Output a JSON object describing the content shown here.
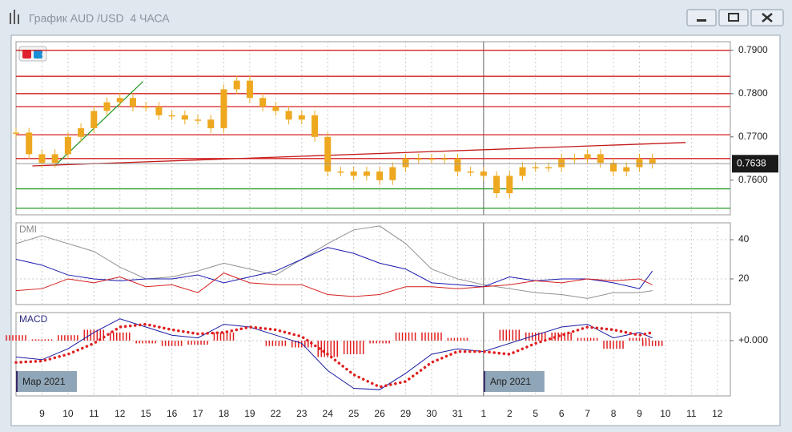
{
  "window": {
    "title": "График AUD /USD  4 ЧАСА"
  },
  "x_axis": {
    "xlim": [
      -1,
      26.5
    ],
    "xticks": [
      {
        "value": 0,
        "label": "9"
      },
      {
        "value": 1,
        "label": "10"
      },
      {
        "value": 2,
        "label": "11"
      },
      {
        "value": 3,
        "label": "12"
      },
      {
        "value": 4,
        "label": "15"
      },
      {
        "value": 5,
        "label": "16"
      },
      {
        "value": 6,
        "label": "17"
      },
      {
        "value": 7,
        "label": "18"
      },
      {
        "value": 8,
        "label": "19"
      },
      {
        "value": 9,
        "label": "22"
      },
      {
        "value": 10,
        "label": "23"
      },
      {
        "value": 11,
        "label": "24"
      },
      {
        "value": 12,
        "label": "25"
      },
      {
        "value": 13,
        "label": "26"
      },
      {
        "value": 14,
        "label": "29"
      },
      {
        "value": 15,
        "label": "30"
      },
      {
        "value": 16,
        "label": "31"
      },
      {
        "value": 17,
        "label": "1"
      },
      {
        "value": 18,
        "label": "2"
      },
      {
        "value": 19,
        "label": "5"
      },
      {
        "value": 20,
        "label": "6"
      },
      {
        "value": 21,
        "label": "7"
      },
      {
        "value": 22,
        "label": "8"
      },
      {
        "value": 23,
        "label": "9"
      },
      {
        "value": 24,
        "label": "10"
      },
      {
        "value": 25,
        "label": "11"
      },
      {
        "value": 26,
        "label": "12"
      }
    ],
    "periods": [
      {
        "value": -1,
        "label": "Мар 2021"
      },
      {
        "value": 17,
        "label": "Апр 2021"
      }
    ]
  },
  "chart_data": [
    {
      "type": "candle",
      "color": "#eea820",
      "ylim": [
        0.752,
        0.792
      ],
      "yticks": [
        {
          "value": 0.76,
          "label": "0.7600"
        },
        {
          "value": 0.77,
          "label": "0.7700"
        },
        {
          "value": 0.78,
          "label": "0.7800"
        },
        {
          "value": 0.79,
          "label": "0.7900"
        }
      ],
      "last": {
        "value": 0.7638,
        "label": "0.7638"
      },
      "hlines": [
        {
          "value": 0.79,
          "color": "#d42020"
        },
        {
          "value": 0.784,
          "color": "#d42020"
        },
        {
          "value": 0.78,
          "color": "#d42020"
        },
        {
          "value": 0.777,
          "color": "#d42020"
        },
        {
          "value": 0.7705,
          "color": "#d42020"
        },
        {
          "value": 0.765,
          "color": "#d42020"
        },
        {
          "value": 0.758,
          "color": "#2a9a2a"
        },
        {
          "value": 0.7535,
          "color": "#2a9a2a"
        }
      ],
      "trendlines": [
        {
          "x": [
            0.49,
            3.89
          ],
          "values": [
            0.7633,
            0.7828
          ],
          "color": "#2a9a2a"
        },
        {
          "x": [
            -0.37,
            24.78
          ],
          "values": [
            0.7633,
            0.7687
          ],
          "color": "#c41818"
        }
      ],
      "x": [
        -1,
        -0.5,
        0,
        0.5,
        1,
        1.5,
        2,
        2.5,
        3,
        3.5,
        4,
        4.5,
        5,
        5.5,
        6,
        6.5,
        7,
        7.5,
        8,
        8.5,
        9,
        9.5,
        10,
        10.5,
        11,
        11.5,
        12,
        12.5,
        13,
        13.5,
        14,
        14.5,
        15,
        15.5,
        16,
        16.5,
        17,
        17.5,
        18,
        18.5,
        19,
        19.5,
        20,
        20.5,
        21,
        21.5,
        22,
        22.5,
        23,
        23.5
      ],
      "values": [
        0.771,
        0.766,
        0.764,
        0.766,
        0.77,
        0.772,
        0.776,
        0.778,
        0.779,
        0.777,
        0.777,
        0.775,
        0.775,
        0.774,
        0.774,
        0.772,
        0.781,
        0.783,
        0.779,
        0.777,
        0.776,
        0.774,
        0.775,
        0.77,
        0.762,
        0.762,
        0.761,
        0.762,
        0.76,
        0.763,
        0.765,
        0.765,
        0.765,
        0.765,
        0.762,
        0.762,
        0.761,
        0.757,
        0.761,
        0.763,
        0.763,
        0.763,
        0.765,
        0.765,
        0.766,
        0.764,
        0.762,
        0.763,
        0.765,
        0.7638
      ]
    },
    {
      "type": "line",
      "label": "DMI",
      "ylim": [
        6.9,
        48.6
      ],
      "yticks": [
        20,
        40
      ],
      "x": [
        -1,
        0,
        1,
        2,
        3,
        4,
        5,
        6,
        7,
        8,
        9,
        10,
        11,
        12,
        13,
        14,
        15,
        16,
        17,
        18,
        19,
        20,
        21,
        22,
        23,
        23.5
      ],
      "series": [
        {
          "color": "#909090",
          "values": [
            38,
            42,
            38,
            34,
            26,
            20,
            21,
            24,
            28,
            25,
            22,
            30,
            38,
            45,
            47,
            38,
            25,
            20,
            17,
            15,
            13,
            12,
            10,
            13,
            13,
            14
          ]
        },
        {
          "color": "#1a1ab0",
          "values": [
            30,
            27,
            22,
            20,
            19,
            20,
            20,
            22,
            18,
            21,
            24,
            30,
            36,
            33,
            28,
            25,
            18,
            17,
            16,
            21,
            19,
            20,
            20,
            18,
            15,
            24
          ]
        },
        {
          "color": "#d42020",
          "values": [
            14,
            15,
            20,
            18,
            21,
            16,
            17,
            13,
            23,
            18,
            17,
            17,
            12,
            11,
            12,
            16,
            16,
            15,
            16,
            17,
            19,
            18,
            20,
            19,
            20,
            17
          ]
        }
      ]
    },
    {
      "type": "macd",
      "label": "MACD",
      "ylim": [
        -0.00406,
        0.00206
      ],
      "yticks": [
        {
          "value": 0,
          "label": "+0.000"
        }
      ],
      "x": [
        -1,
        0,
        1,
        2,
        3,
        4,
        5,
        6,
        7,
        8,
        9,
        10,
        11,
        12,
        13,
        14,
        15,
        16,
        17,
        18,
        19,
        20,
        21,
        22,
        23,
        23.5
      ],
      "series": [
        {
          "color": "#e02020",
          "style": "histogram",
          "values": [
            0.0004,
            0.0001,
            0.0004,
            0.0008,
            0.0006,
            -0.0002,
            -0.0004,
            -0.0003,
            0.0006,
            0,
            -0.0004,
            -0.0005,
            -0.0012,
            -0.001,
            -0.0002,
            0.0006,
            0.0006,
            0.0002,
            0,
            0.0008,
            0.0006,
            0.0006,
            0.0002,
            -0.0006,
            0.0002,
            -0.0004
          ]
        },
        {
          "color": "#1a1aa0",
          "style": "line",
          "values": [
            -0.0012,
            -0.0014,
            -0.0006,
            0.0006,
            0.0016,
            0.001,
            0.0004,
            0.0002,
            0.0012,
            0.001,
            0.0004,
            -0.0002,
            -0.0022,
            -0.0035,
            -0.0036,
            -0.0024,
            -0.001,
            -0.0006,
            -0.0008,
            -0.0002,
            0.0004,
            0.001,
            0.0012,
            0.0002,
            0.0006,
            0.0002
          ]
        },
        {
          "color": "#e02020",
          "style": "dotted",
          "values": [
            -0.0016,
            -0.0015,
            -0.001,
            -0.0002,
            0.001,
            0.0012,
            0.0008,
            0.0005,
            0.0006,
            0.001,
            0.0008,
            0.0003,
            -0.001,
            -0.0025,
            -0.0034,
            -0.003,
            -0.0016,
            -0.0008,
            -0.0008,
            -0.001,
            -0.0002,
            0.0004,
            0.001,
            0.0008,
            0.0004,
            0.0006
          ]
        }
      ]
    }
  ]
}
